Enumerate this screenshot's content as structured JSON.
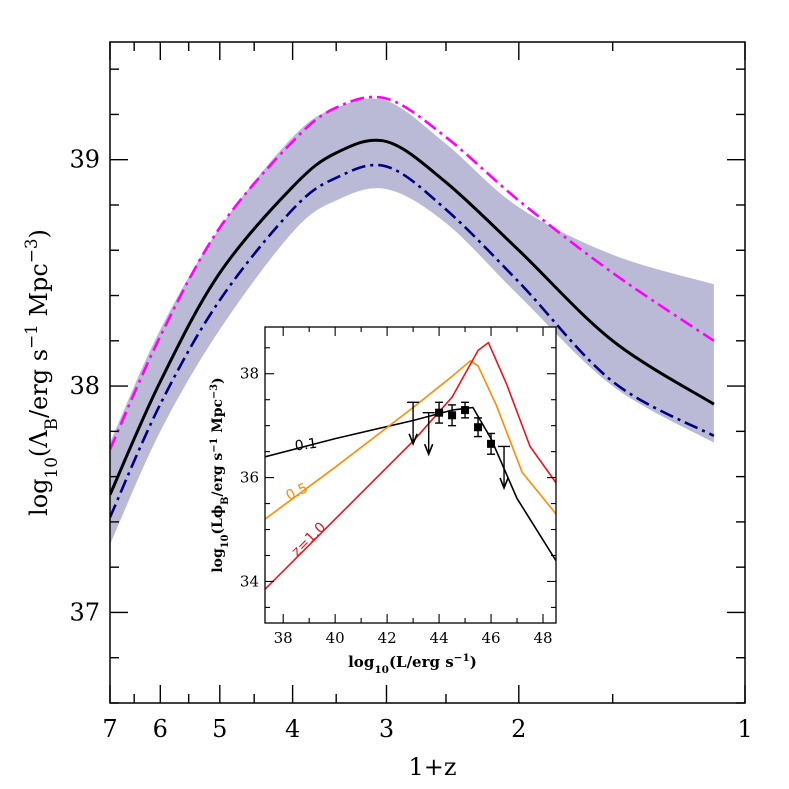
{
  "chart_data": [
    {
      "type": "line",
      "xlabel": "1+z",
      "ylabel": "log10(ΛB/erg s−1 Mpc−3)",
      "x_scale": "log",
      "x_ticks": [
        7,
        6,
        5,
        4,
        3,
        2,
        1
      ],
      "xlim": [
        7,
        1
      ],
      "ylim": [
        36.6,
        39.52
      ],
      "y_ticks": [
        37,
        38,
        39
      ],
      "band": {
        "color": "#babad6",
        "x": [
          7.0,
          6.0,
          5.0,
          4.0,
          3.5,
          3.0,
          2.5,
          2.0,
          1.5,
          1.1
        ],
        "lower": [
          37.3,
          37.8,
          38.25,
          38.68,
          38.82,
          38.87,
          38.72,
          38.4,
          38.0,
          37.75
        ],
        "upper": [
          37.75,
          38.25,
          38.7,
          39.1,
          39.23,
          39.26,
          39.07,
          38.79,
          38.58,
          38.45
        ]
      },
      "series": [
        {
          "style": "dash-dot",
          "color": "#ff00ff",
          "x": [
            7.0,
            6.0,
            5.0,
            4.0,
            3.5,
            3.0,
            2.5,
            2.0,
            1.5,
            1.1
          ],
          "y": [
            37.72,
            38.22,
            38.7,
            39.08,
            39.23,
            39.27,
            39.1,
            38.82,
            38.5,
            38.2
          ]
        },
        {
          "style": "solid",
          "color": "#000000",
          "x": [
            7.0,
            6.0,
            5.0,
            4.0,
            3.5,
            3.0,
            2.5,
            2.0,
            1.5,
            1.1
          ],
          "y": [
            37.52,
            38.02,
            38.5,
            38.88,
            39.03,
            39.08,
            38.9,
            38.6,
            38.2,
            37.92
          ]
        },
        {
          "style": "dash-dot",
          "color": "#000080",
          "x": [
            7.0,
            6.0,
            5.0,
            4.0,
            3.5,
            3.0,
            2.5,
            2.0,
            1.5,
            1.1
          ],
          "y": [
            37.42,
            37.92,
            38.38,
            38.78,
            38.92,
            38.97,
            38.78,
            38.46,
            38.02,
            37.78
          ]
        }
      ]
    },
    {
      "type": "line",
      "xlabel": "log10(L/erg s−1)",
      "ylabel": "log10(LϕB/erg s−1 Mpc−3)",
      "xlim": [
        37.3,
        48.5
      ],
      "ylim": [
        33.2,
        38.9
      ],
      "x_ticks": [
        38,
        40,
        42,
        44,
        46,
        48
      ],
      "y_ticks": [
        34,
        36,
        38
      ],
      "series": [
        {
          "name": "0.1",
          "color": "#000000",
          "x": [
            37.3,
            40,
            43,
            44.5,
            45.3,
            46.0,
            47.0,
            48.5
          ],
          "y": [
            36.4,
            36.75,
            37.1,
            37.3,
            37.35,
            36.75,
            35.6,
            34.4
          ]
        },
        {
          "name": "0.5",
          "color": "#ff8c00",
          "x": [
            37.3,
            40,
            43,
            44.5,
            45.2,
            45.5,
            46.2,
            47.2,
            48.5
          ],
          "y": [
            35.2,
            36.2,
            37.35,
            37.95,
            38.25,
            38.15,
            37.4,
            36.1,
            35.3
          ]
        },
        {
          "name": "z=1.0",
          "color": "#e8141e",
          "x": [
            37.3,
            40,
            43,
            44.5,
            45.5,
            45.9,
            46.6,
            47.5,
            48.5
          ],
          "y": [
            33.85,
            35.2,
            36.7,
            37.55,
            38.45,
            38.6,
            37.8,
            36.6,
            35.9
          ]
        }
      ],
      "points": {
        "x": [
          44.0,
          44.5,
          45.0,
          45.5,
          46.0
        ],
        "y": [
          37.25,
          37.2,
          37.3,
          36.97,
          36.65
        ],
        "yerr": [
          0.2,
          0.2,
          0.15,
          0.18,
          0.2
        ]
      },
      "upper_limits": {
        "x": [
          43.0,
          43.6,
          46.5
        ],
        "top": [
          37.45,
          37.25,
          36.6
        ],
        "bottom": [
          36.65,
          36.45,
          35.8
        ]
      },
      "curve_labels": [
        {
          "text": "0.1",
          "color": "#000000",
          "x": 38.9,
          "y": 36.55,
          "angle": -8
        },
        {
          "text": "0.5",
          "color": "#ff8c00",
          "x": 38.6,
          "y": 35.65,
          "angle": -25
        },
        {
          "text": "z=1.0",
          "color": "#e8141e",
          "x": 39.1,
          "y": 34.75,
          "angle": -45
        }
      ]
    }
  ]
}
